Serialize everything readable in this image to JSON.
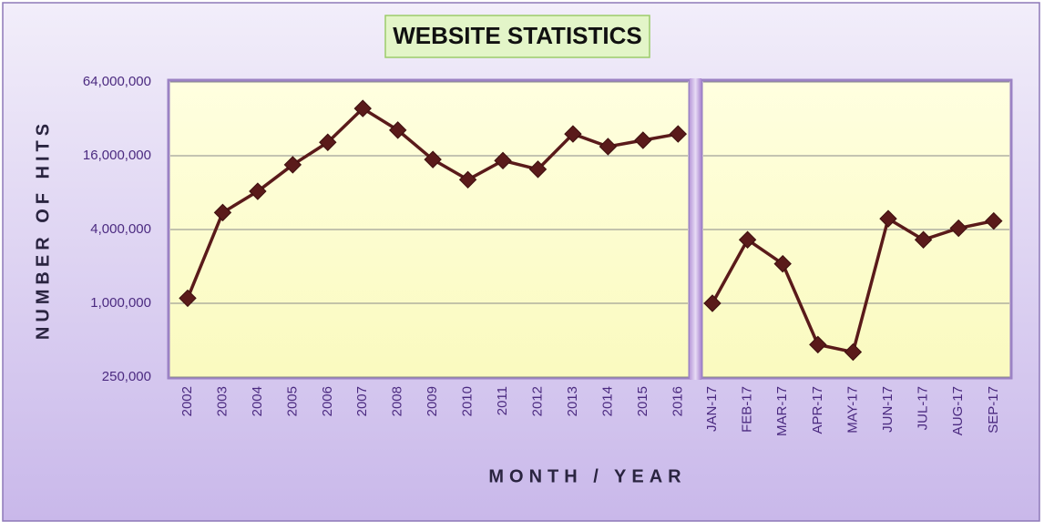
{
  "chart_data": [
    {
      "type": "line",
      "title": "WEBSITE STATISTICS",
      "y_label": "NUMBER OF HITS",
      "x_label": "MONTH / YEAR",
      "categories": [
        "2002",
        "2003",
        "2004",
        "2005",
        "2006",
        "2007",
        "2008",
        "2009",
        "2010",
        "2011",
        "2012",
        "2013",
        "2014",
        "2015",
        "2016"
      ],
      "values": [
        1100000,
        5500000,
        8200000,
        13500000,
        20600000,
        38900000,
        25900000,
        14900000,
        10200000,
        14600000,
        12400000,
        24100000,
        19000000,
        21400000,
        24100000
      ],
      "color": "#5a1a1a",
      "ylim": [
        250000,
        64000000
      ],
      "log_scale": true,
      "grid": true,
      "yticks": [
        {
          "value": 250000,
          "label": "250,000"
        },
        {
          "value": 1000000,
          "label": "1,000,000"
        },
        {
          "value": 4000000,
          "label": "4,000,000"
        },
        {
          "value": 16000000,
          "label": "16,000,000"
        },
        {
          "value": 64000000,
          "label": "64,000,000"
        }
      ]
    },
    {
      "type": "line",
      "categories": [
        "JAN-17",
        "FEB-17",
        "MAR-17",
        "APR-17",
        "MAY-17",
        "JUN-17",
        "JUL-17",
        "AUG-17",
        "SEP-17"
      ],
      "values": [
        1000000,
        3300000,
        2100000,
        460000,
        400000,
        4900000,
        3300000,
        4100000,
        4700000
      ],
      "color": "#5a1a1a"
    }
  ]
}
